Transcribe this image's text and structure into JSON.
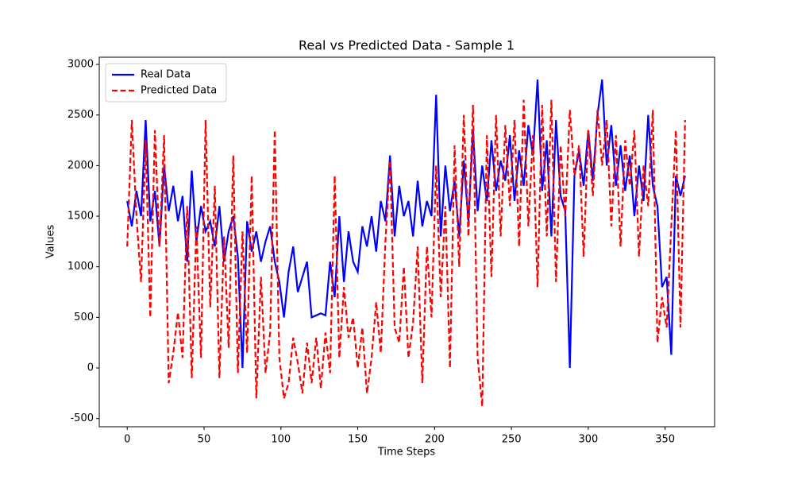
{
  "chart_data": {
    "type": "line",
    "title": "Real vs Predicted Data - Sample 1",
    "xlabel": "Time Steps",
    "ylabel": "Values",
    "x": [
      0,
      3,
      6,
      9,
      12,
      15,
      18,
      21,
      24,
      27,
      30,
      33,
      36,
      39,
      42,
      45,
      48,
      51,
      54,
      57,
      60,
      63,
      66,
      69,
      72,
      75,
      78,
      81,
      84,
      87,
      90,
      93,
      96,
      99,
      102,
      105,
      108,
      111,
      114,
      117,
      120,
      123,
      126,
      129,
      132,
      135,
      138,
      141,
      144,
      147,
      150,
      153,
      156,
      159,
      162,
      165,
      168,
      171,
      174,
      177,
      180,
      183,
      186,
      189,
      192,
      195,
      198,
      201,
      204,
      207,
      210,
      213,
      216,
      219,
      222,
      225,
      228,
      231,
      234,
      237,
      240,
      243,
      246,
      249,
      252,
      255,
      258,
      261,
      264,
      267,
      270,
      273,
      276,
      279,
      282,
      285,
      288,
      291,
      294,
      297,
      300,
      303,
      306,
      309,
      312,
      315,
      318,
      321,
      324,
      327,
      330,
      333,
      336,
      339,
      342,
      345,
      348,
      351,
      354,
      357,
      360,
      363
    ],
    "series": [
      {
        "name": "Real Data",
        "color": "#0000ff",
        "linestyle": "solid",
        "values": [
          1650,
          1400,
          1750,
          1500,
          2450,
          1450,
          1750,
          1200,
          2000,
          1550,
          1800,
          1450,
          1700,
          1050,
          1950,
          1250,
          1600,
          1350,
          1450,
          1200,
          1600,
          1050,
          1350,
          1500,
          1100,
          0,
          1450,
          1150,
          1350,
          1050,
          1250,
          1400,
          1050,
          850,
          500,
          950,
          1200,
          750,
          900,
          1050,
          500,
          520,
          540,
          520,
          1050,
          700,
          1500,
          850,
          1350,
          1050,
          950,
          1400,
          1200,
          1500,
          1150,
          1650,
          1450,
          2100,
          1300,
          1800,
          1500,
          1650,
          1300,
          1850,
          1400,
          1650,
          1500,
          2700,
          1300,
          2000,
          1550,
          1850,
          1300,
          2050,
          1450,
          2350,
          1550,
          2000,
          1650,
          2250,
          1750,
          2050,
          1850,
          2300,
          1650,
          2150,
          1800,
          2400,
          2100,
          2850,
          1750,
          2250,
          1300,
          2450,
          1700,
          1550,
          0,
          1900,
          2150,
          1800,
          2350,
          1850,
          2500,
          2850,
          2000,
          2400,
          1800,
          2200,
          1750,
          2100,
          1500,
          2000,
          1650,
          2500,
          1800,
          1600,
          800,
          900,
          130,
          1900,
          1700,
          1900
        ]
      },
      {
        "name": "Predicted Data",
        "color": "#ff0000",
        "linestyle": "dashed",
        "values": [
          1200,
          2450,
          1500,
          850,
          2250,
          500,
          2350,
          1200,
          2300,
          -150,
          150,
          550,
          100,
          1600,
          -100,
          1400,
          100,
          2450,
          600,
          1800,
          -100,
          1300,
          200,
          2100,
          -50,
          1350,
          150,
          1900,
          -300,
          900,
          -50,
          350,
          2350,
          100,
          -300,
          -150,
          300,
          50,
          -250,
          250,
          -150,
          300,
          -200,
          350,
          -50,
          1900,
          100,
          800,
          300,
          500,
          0,
          400,
          -250,
          100,
          650,
          150,
          1250,
          2050,
          400,
          250,
          1000,
          100,
          450,
          1200,
          -150,
          1200,
          500,
          2000,
          700,
          1600,
          0,
          2200,
          1000,
          2500,
          1300,
          2600,
          100,
          -380,
          2300,
          900,
          2500,
          1300,
          2400,
          1600,
          2450,
          1200,
          2650,
          1400,
          2300,
          800,
          2600,
          1300,
          2650,
          850,
          2200,
          1500,
          2550,
          1900,
          2200,
          1100,
          2350,
          1700,
          2550,
          2000,
          2450,
          1400,
          2300,
          1200,
          2250,
          1800,
          2350,
          1100,
          2000,
          1600,
          2550,
          250,
          700,
          400,
          1400,
          2350,
          400,
          2450
        ]
      }
    ],
    "xlim": [
      -18.2,
      382.2
    ],
    "ylim": [
      -581,
      3071
    ],
    "xticks": [
      0,
      50,
      100,
      150,
      200,
      250,
      300,
      350
    ],
    "yticks": [
      -500,
      0,
      500,
      1000,
      1500,
      2000,
      2500,
      3000
    ],
    "legend": "upper left"
  }
}
